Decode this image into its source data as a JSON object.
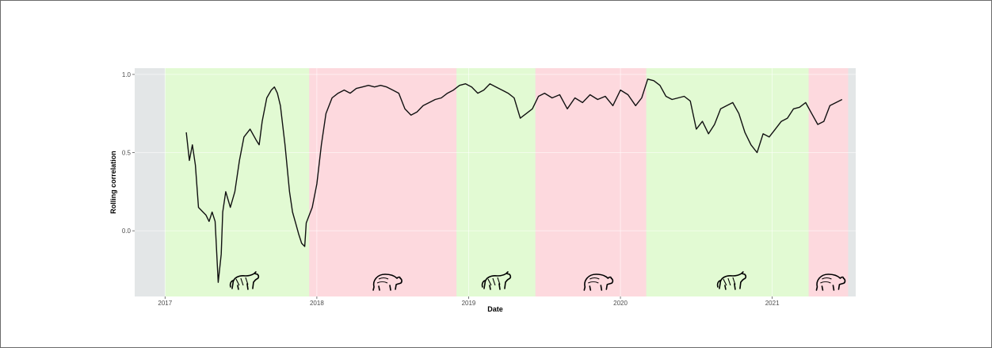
{
  "chart_data": {
    "type": "line",
    "xlabel": "Date",
    "ylabel": "Rolling correlation",
    "xlim": [
      2016.8,
      2021.55
    ],
    "ylim": [
      -0.42,
      1.04
    ],
    "x_ticks": [
      {
        "value": 2017,
        "label": "2017"
      },
      {
        "value": 2018,
        "label": "2018"
      },
      {
        "value": 2019,
        "label": "2019"
      },
      {
        "value": 2020,
        "label": "2020"
      },
      {
        "value": 2021,
        "label": "2021"
      }
    ],
    "y_ticks": [
      {
        "value": 0.0,
        "label": "0.0"
      },
      {
        "value": 0.5,
        "label": "0.5"
      },
      {
        "value": 1.0,
        "label": "1.0"
      }
    ],
    "grid": true,
    "regimes": [
      {
        "start": 2017.0,
        "end": 2017.95,
        "market": "bull",
        "color": "#e2fad3"
      },
      {
        "start": 2017.95,
        "end": 2018.92,
        "market": "bear",
        "color": "#fdd9de"
      },
      {
        "start": 2018.92,
        "end": 2019.44,
        "market": "bull",
        "color": "#e2fad3"
      },
      {
        "start": 2019.44,
        "end": 2020.17,
        "market": "bear",
        "color": "#fdd9de"
      },
      {
        "start": 2020.17,
        "end": 2021.24,
        "market": "bull",
        "color": "#e2fad3"
      },
      {
        "start": 2021.24,
        "end": 2021.5,
        "market": "bear",
        "color": "#fdd9de"
      }
    ],
    "panel_background": "#e3e6e7",
    "line_color": "#111111",
    "series": [
      {
        "x": [
          2017.14,
          2017.16,
          2017.18,
          2017.2,
          2017.22,
          2017.25,
          2017.27,
          2017.29,
          2017.31,
          2017.33,
          2017.35,
          2017.37,
          2017.38,
          2017.4,
          2017.43,
          2017.46,
          2017.49,
          2017.52,
          2017.56,
          2017.6,
          2017.62,
          2017.64,
          2017.67,
          2017.7,
          2017.72,
          2017.74,
          2017.76,
          2017.79,
          2017.82,
          2017.84,
          2017.86,
          2017.88,
          2017.9,
          2017.92,
          2017.93,
          2017.95,
          2017.97,
          2018.0,
          2018.03,
          2018.06,
          2018.1,
          2018.14,
          2018.18,
          2018.22,
          2018.26,
          2018.3,
          2018.34,
          2018.38,
          2018.42,
          2018.46,
          2018.5,
          2018.54,
          2018.58,
          2018.62,
          2018.66,
          2018.7,
          2018.74,
          2018.78,
          2018.82,
          2018.86,
          2018.9,
          2018.94,
          2018.98,
          2019.02,
          2019.06,
          2019.1,
          2019.14,
          2019.18,
          2019.22,
          2019.26,
          2019.3,
          2019.34,
          2019.38,
          2019.42,
          2019.46,
          2019.5,
          2019.55,
          2019.6,
          2019.65,
          2019.7,
          2019.75,
          2019.8,
          2019.85,
          2019.9,
          2019.95,
          2020.0,
          2020.05,
          2020.1,
          2020.14,
          2020.18,
          2020.22,
          2020.26,
          2020.3,
          2020.34,
          2020.38,
          2020.42,
          2020.46,
          2020.5,
          2020.54,
          2020.58,
          2020.62,
          2020.66,
          2020.7,
          2020.74,
          2020.78,
          2020.82,
          2020.86,
          2020.9,
          2020.94,
          2020.98,
          2021.02,
          2021.06,
          2021.1,
          2021.14,
          2021.18,
          2021.22,
          2021.26,
          2021.3,
          2021.34,
          2021.38,
          2021.42,
          2021.46
        ],
        "y": [
          0.63,
          0.45,
          0.55,
          0.42,
          0.15,
          0.12,
          0.1,
          0.06,
          0.12,
          0.06,
          -0.33,
          -0.15,
          0.12,
          0.25,
          0.15,
          0.25,
          0.45,
          0.6,
          0.65,
          0.58,
          0.55,
          0.7,
          0.85,
          0.9,
          0.92,
          0.88,
          0.8,
          0.55,
          0.25,
          0.12,
          0.05,
          -0.02,
          -0.08,
          -0.1,
          0.05,
          0.1,
          0.15,
          0.3,
          0.55,
          0.75,
          0.85,
          0.88,
          0.9,
          0.88,
          0.91,
          0.92,
          0.93,
          0.92,
          0.93,
          0.92,
          0.9,
          0.88,
          0.78,
          0.74,
          0.76,
          0.8,
          0.82,
          0.84,
          0.85,
          0.88,
          0.9,
          0.93,
          0.94,
          0.92,
          0.88,
          0.9,
          0.94,
          0.92,
          0.9,
          0.88,
          0.85,
          0.72,
          0.75,
          0.78,
          0.86,
          0.88,
          0.85,
          0.87,
          0.78,
          0.85,
          0.82,
          0.87,
          0.84,
          0.86,
          0.8,
          0.9,
          0.87,
          0.8,
          0.85,
          0.97,
          0.96,
          0.93,
          0.86,
          0.84,
          0.85,
          0.86,
          0.83,
          0.65,
          0.7,
          0.62,
          0.68,
          0.78,
          0.8,
          0.82,
          0.75,
          0.63,
          0.55,
          0.5,
          0.62,
          0.6,
          0.65,
          0.7,
          0.72,
          0.78,
          0.79,
          0.82,
          0.75,
          0.68,
          0.7,
          0.8,
          0.82,
          0.84
        ]
      }
    ],
    "icons": [
      {
        "x": 2017.52,
        "name": "bull-icon"
      },
      {
        "x": 2018.46,
        "name": "bear-icon"
      },
      {
        "x": 2019.18,
        "name": "bull-icon"
      },
      {
        "x": 2019.85,
        "name": "bear-icon"
      },
      {
        "x": 2020.73,
        "name": "bull-icon"
      },
      {
        "x": 2021.38,
        "name": "bear-icon"
      }
    ]
  }
}
